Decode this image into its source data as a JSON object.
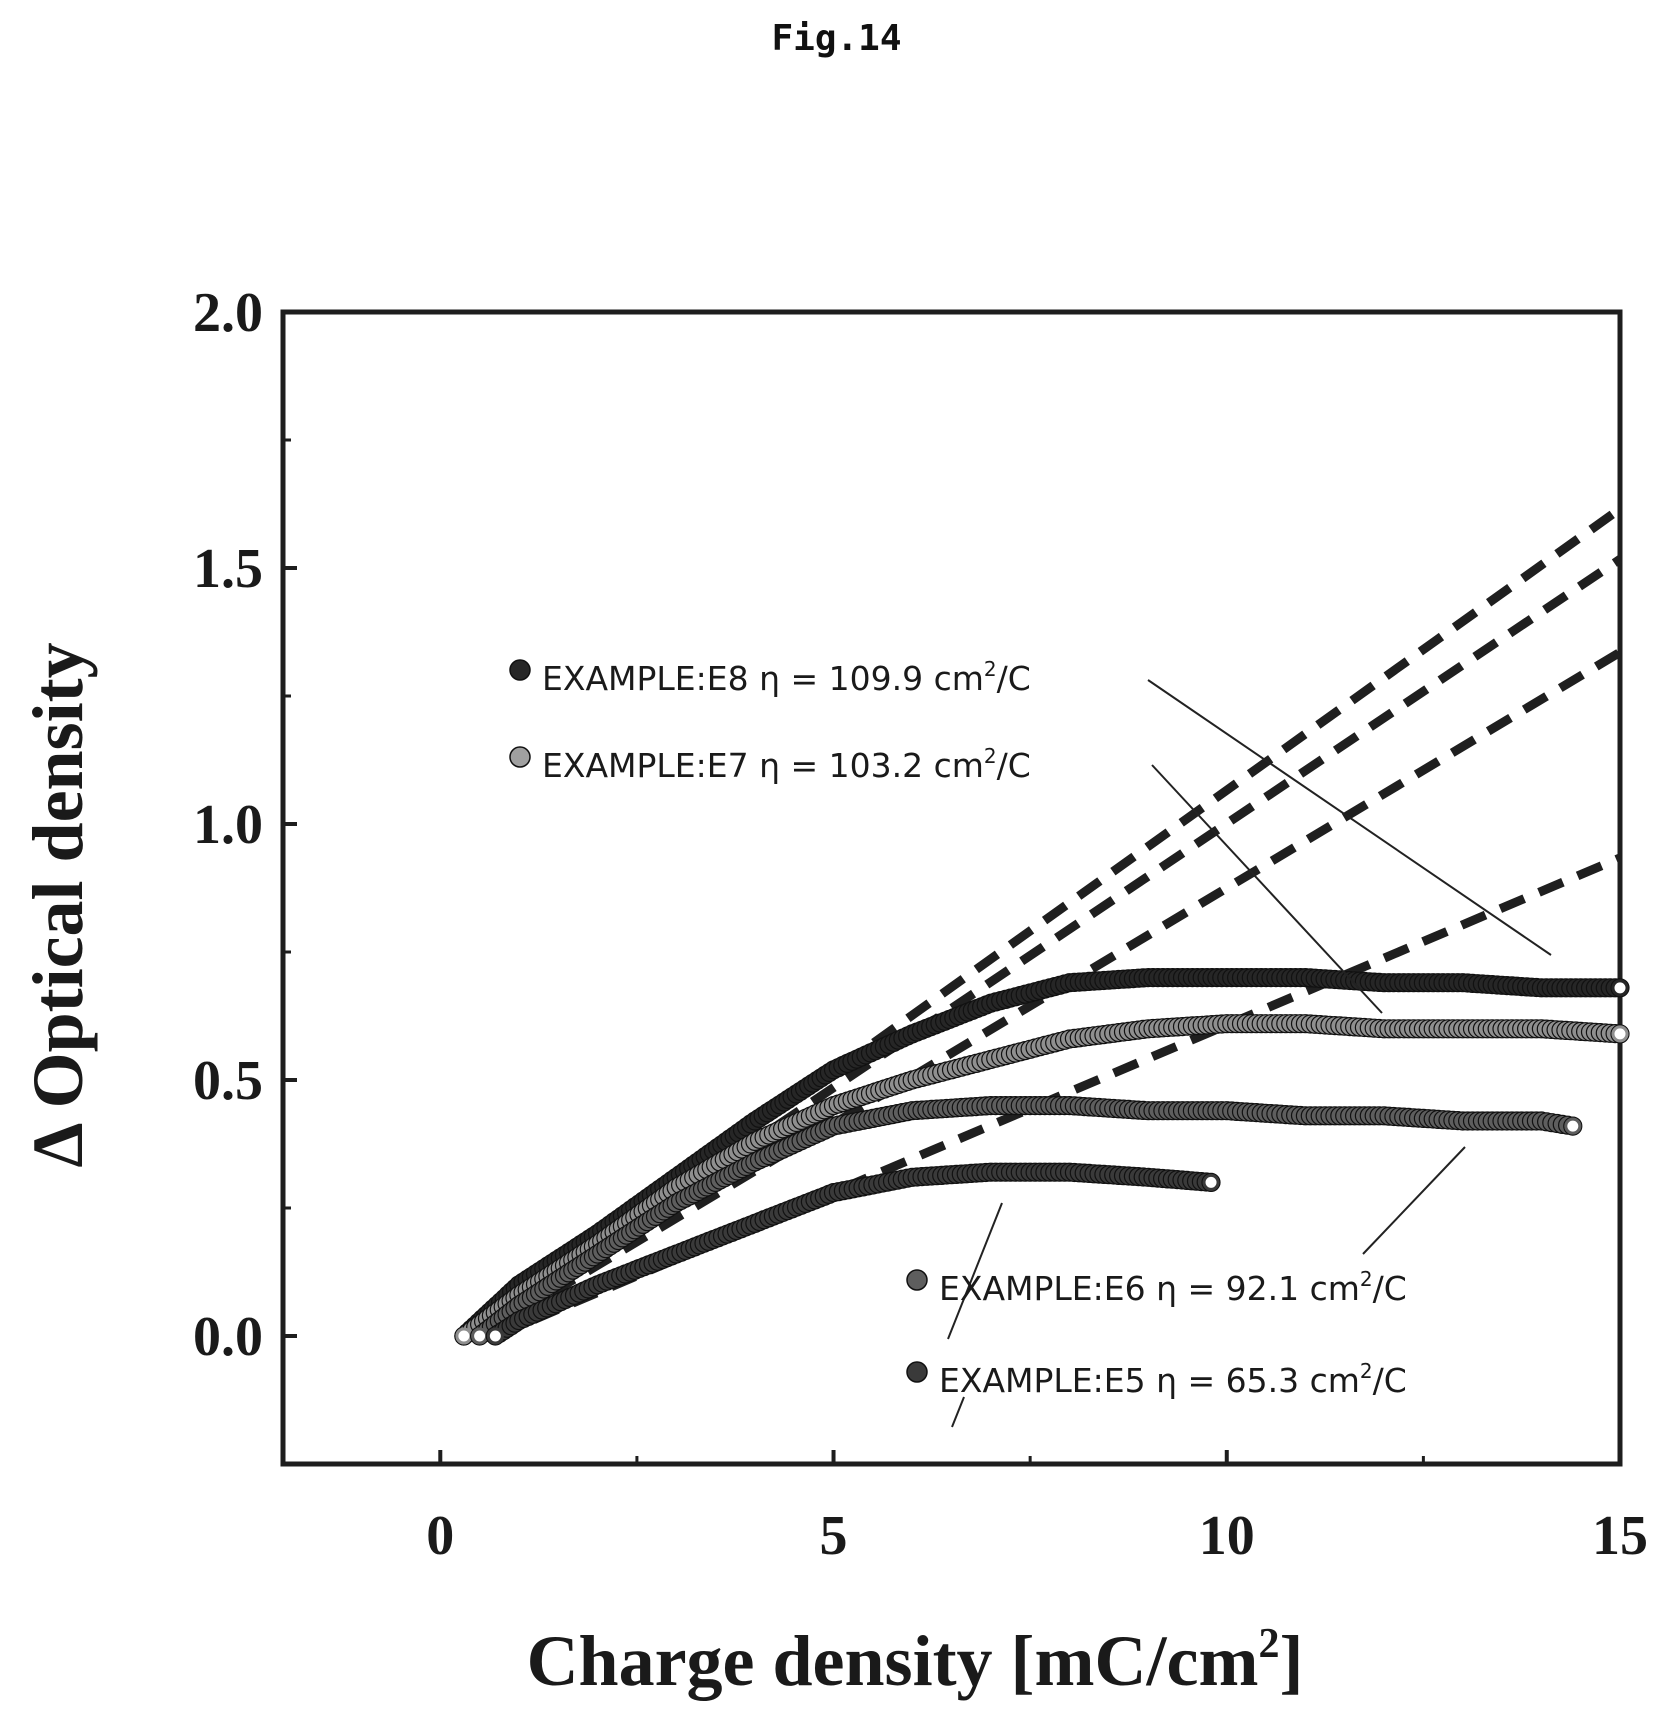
{
  "figure_title": "Fig.14",
  "chart_data": {
    "type": "scatter",
    "xlabel": "Charge density [mC/cm",
    "xlabel_sup": "2",
    "xlabel_end": "]",
    "ylabel": "Δ Optical density",
    "xlim": [
      -2,
      15
    ],
    "ylim": [
      -0.25,
      2.0
    ],
    "x_ticks": [
      0,
      5,
      10,
      15
    ],
    "x_tick_labels": [
      "0",
      "5",
      "10",
      "15"
    ],
    "y_ticks": [
      0.0,
      0.5,
      1.0,
      1.5,
      2.0
    ],
    "y_tick_labels": [
      "0.0",
      "0.5",
      "1.0",
      "1.5",
      "2.0"
    ],
    "grid": false,
    "series": [
      {
        "name": "EXAMPLE:E8",
        "eta_text": "η = 109.9 cm",
        "eta_unit_sup": "2",
        "eta_unit_end": "/C",
        "color": "#262626",
        "x": [
          0.3,
          1,
          2,
          3,
          4,
          5,
          6,
          7,
          8,
          9,
          10,
          11,
          12,
          13,
          14,
          15
        ],
        "y": [
          0.0,
          0.1,
          0.2,
          0.31,
          0.42,
          0.52,
          0.59,
          0.65,
          0.69,
          0.7,
          0.7,
          0.7,
          0.69,
          0.69,
          0.68,
          0.68
        ],
        "fit": {
          "slope": 0.1099,
          "x_start": 0.3,
          "x_end": 15
        }
      },
      {
        "name": "EXAMPLE:E7",
        "eta_text": "η = 103.2 cm",
        "eta_unit_sup": "2",
        "eta_unit_end": "/C",
        "color": "#8f8f8f",
        "x": [
          0.3,
          1,
          2,
          3,
          4,
          5,
          6,
          7,
          8,
          9,
          10,
          11,
          12,
          13,
          14,
          15
        ],
        "y": [
          0.0,
          0.08,
          0.18,
          0.29,
          0.38,
          0.45,
          0.5,
          0.54,
          0.58,
          0.6,
          0.61,
          0.61,
          0.6,
          0.6,
          0.6,
          0.59
        ],
        "fit": {
          "slope": 0.1032,
          "x_start": 0.3,
          "x_end": 15
        }
      },
      {
        "name": "EXAMPLE:E6",
        "eta_text": "η = 92.1 cm",
        "eta_unit_sup": "2",
        "eta_unit_end": "/C",
        "color": "#5e5e5e",
        "x": [
          0.5,
          1,
          2,
          3,
          4,
          5,
          6,
          7,
          8,
          9,
          10,
          11,
          12,
          13,
          14,
          14.4
        ],
        "y": [
          0.0,
          0.06,
          0.16,
          0.26,
          0.34,
          0.41,
          0.44,
          0.45,
          0.45,
          0.44,
          0.44,
          0.43,
          0.43,
          0.42,
          0.42,
          0.41
        ],
        "fit": {
          "slope": 0.0921,
          "x_start": 0.5,
          "x_end": 15
        }
      },
      {
        "name": "EXAMPLE:E5",
        "eta_text": "η = 65.3 cm",
        "eta_unit_sup": "2",
        "eta_unit_end": "/C",
        "color": "#3a3a3a",
        "x": [
          0.7,
          1,
          2,
          3,
          4,
          5,
          6,
          7,
          8,
          9,
          9.8
        ],
        "y": [
          0.0,
          0.03,
          0.1,
          0.16,
          0.22,
          0.28,
          0.31,
          0.32,
          0.32,
          0.31,
          0.3
        ],
        "fit": {
          "slope": 0.0653,
          "x_start": 0.7,
          "x_end": 15
        }
      }
    ]
  }
}
